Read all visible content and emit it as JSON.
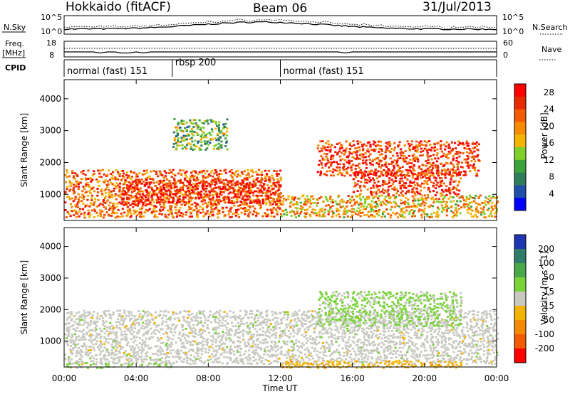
{
  "header": {
    "station": "Hokkaido (fitACF)",
    "beam": "Beam 06",
    "date": "31/Jul/2013"
  },
  "strip_labels": {
    "nsky": "N.Sky",
    "nsky_ticks": [
      "10^5",
      "10^0"
    ],
    "nsearch": "N.Search",
    "nsearch_ticks": [
      "10^5",
      "10^0"
    ],
    "freq": "Freq.",
    "freq_unit": "[MHz]",
    "freq_ticks": [
      "18",
      "8"
    ],
    "nave": "Nave",
    "nave_ticks": [
      "60",
      "0"
    ],
    "cpid": "CPID"
  },
  "cpid_segments": [
    {
      "label": "normal (fast) 151",
      "start_hour": 0,
      "end_hour": 6
    },
    {
      "label": "rbsp 200",
      "start_hour": 6,
      "end_hour": 12
    },
    {
      "label": "normal (fast) 151",
      "start_hour": 12,
      "end_hour": 24
    }
  ],
  "x_axis": {
    "label": "Time UT",
    "ticks": [
      "00:00",
      "04:00",
      "08:00",
      "12:00",
      "16:00",
      "20:00",
      "00:00"
    ],
    "range_hours": [
      0,
      24
    ]
  },
  "chart_data": [
    {
      "type": "heatmap",
      "panel": "power",
      "ylabel": "Slant Range [km]",
      "yticks": [
        1000,
        2000,
        3000,
        4000
      ],
      "ylim": [
        180,
        4600
      ],
      "xlim": [
        0,
        24
      ],
      "colorbar": {
        "label": "Power [dB]",
        "ticks": [
          4,
          8,
          12,
          16,
          20,
          24,
          28
        ],
        "range": [
          0,
          30
        ],
        "colors": [
          "#0000ff",
          "#1f4fa8",
          "#2f7d5a",
          "#3ca23c",
          "#7fd02a",
          "#f4b400",
          "#f78a00",
          "#f45a00",
          "#e82a00",
          "#ff0000"
        ]
      },
      "regions": [
        {
          "t": [
            0,
            12
          ],
          "range": [
            300,
            1800
          ],
          "level": 22
        },
        {
          "t": [
            12,
            24
          ],
          "range": [
            300,
            1000
          ],
          "level": 18
        },
        {
          "t": [
            3,
            12
          ],
          "range": [
            700,
            1500
          ],
          "level": 27
        },
        {
          "t": [
            14,
            23
          ],
          "range": [
            1600,
            2700
          ],
          "level": 25
        },
        {
          "t": [
            6,
            9
          ],
          "range": [
            2400,
            3400
          ],
          "level": 12
        },
        {
          "t": [
            16,
            22
          ],
          "range": [
            1000,
            1800
          ],
          "level": 26
        }
      ]
    },
    {
      "type": "heatmap",
      "panel": "velocity",
      "ylabel": "Slant Range [km]",
      "yticks": [
        1000,
        2000,
        3000,
        4000
      ],
      "ylim": [
        180,
        4600
      ],
      "xlim": [
        0,
        24
      ],
      "colorbar": {
        "label": "Velocity [m s^-1]",
        "ticks": [
          200,
          100,
          50,
          15,
          -15,
          -50,
          -100,
          -200
        ],
        "range": [
          -250,
          250
        ],
        "colors": [
          "#2036b0",
          "#2f7d6a",
          "#49a84a",
          "#79d23a",
          "#c8c8c0",
          "#f2b400",
          "#f58a00",
          "#f45a00",
          "#ff0000"
        ]
      },
      "regions": [
        {
          "t": [
            0,
            24
          ],
          "range": [
            300,
            2000
          ],
          "level": 0
        },
        {
          "t": [
            14,
            22
          ],
          "range": [
            1500,
            2600
          ],
          "level": 40
        },
        {
          "t": [
            12,
            22
          ],
          "range": [
            180,
            400
          ],
          "level": -60
        },
        {
          "t": [
            0,
            6
          ],
          "range": [
            180,
            350
          ],
          "level": 30
        }
      ]
    }
  ]
}
